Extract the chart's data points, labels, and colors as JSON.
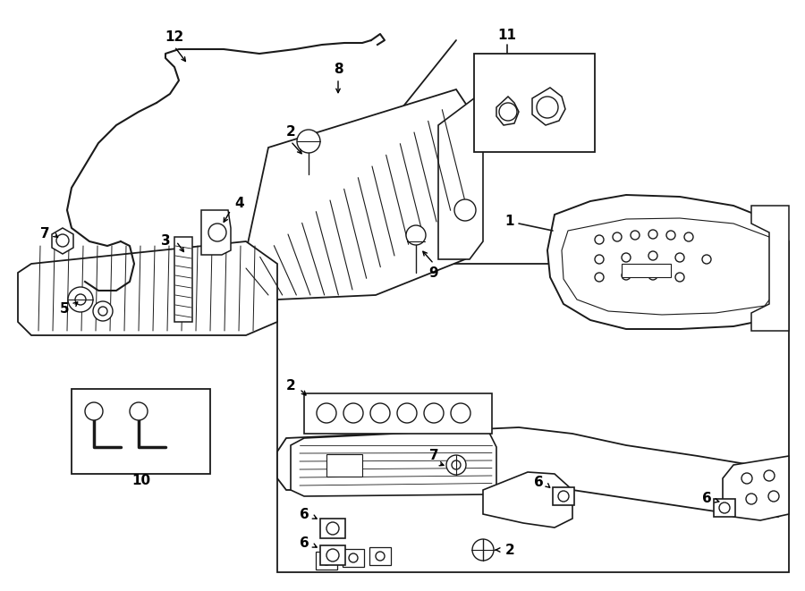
{
  "bg_color": "#ffffff",
  "lc": "#1a1a1a",
  "fig_width": 9.0,
  "fig_height": 6.61,
  "dpi": 100
}
